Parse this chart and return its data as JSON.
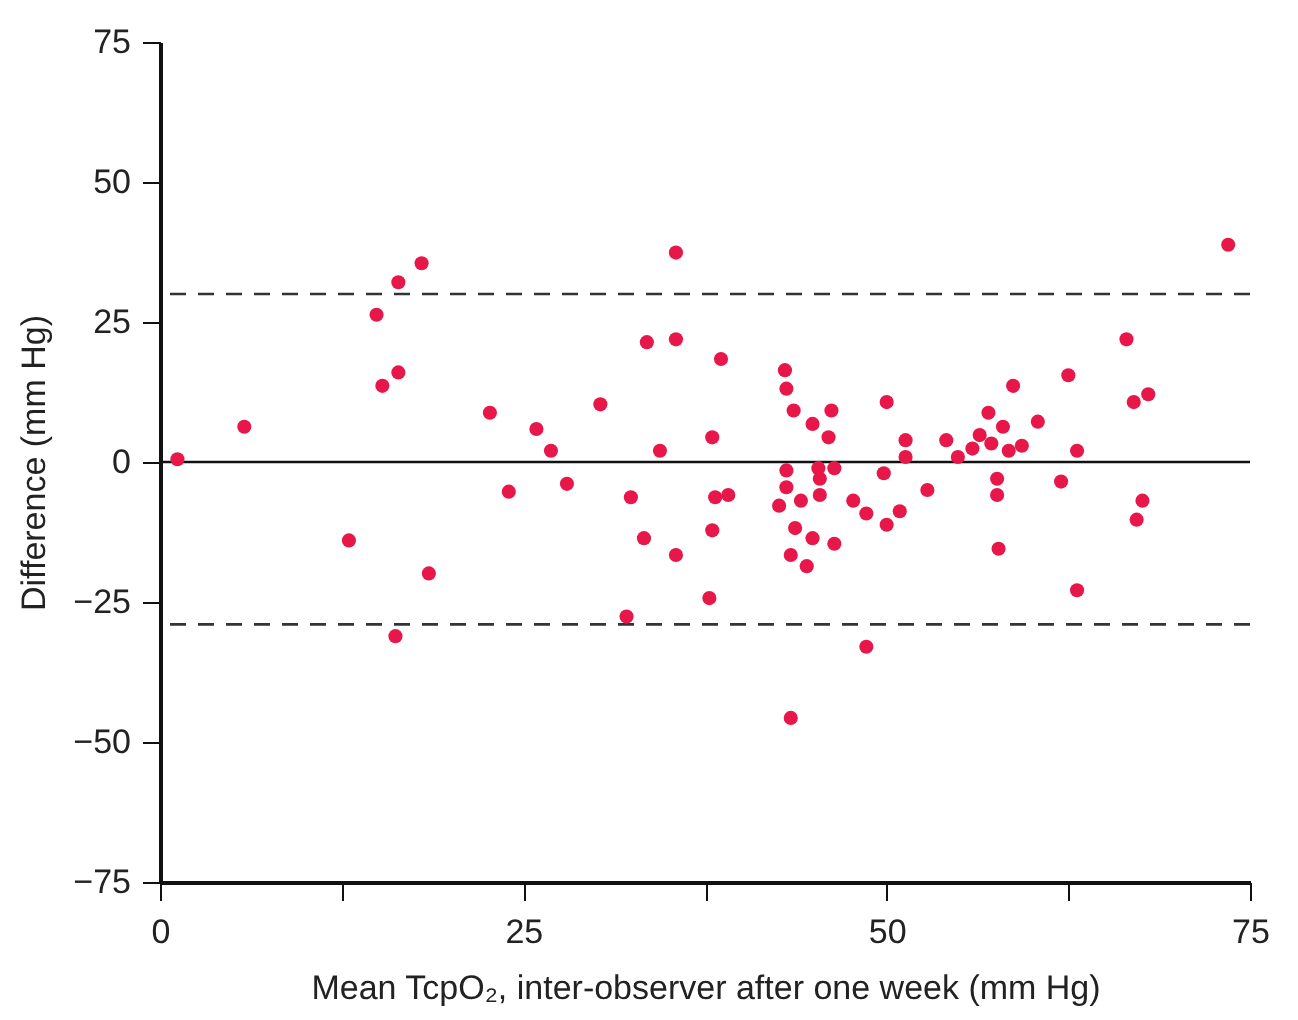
{
  "chart_data": {
    "type": "scatter",
    "xlabel": "Mean TcpO₂, inter-observer after one week (mm Hg)",
    "ylabel": "Difference (mm Hg)",
    "xlim": [
      0,
      75
    ],
    "ylim": [
      -75,
      75
    ],
    "xticks": [
      0,
      {
        "value": 12.5,
        "label": null
      },
      25,
      {
        "value": 37.5,
        "label": null
      },
      50,
      {
        "value": 62.5,
        "label": null
      },
      75
    ],
    "yticks": [
      {
        "value": -75,
        "label": "−75"
      },
      {
        "value": -50,
        "label": "−50"
      },
      {
        "value": -25,
        "label": "−25"
      },
      0,
      25,
      50,
      75
    ],
    "grid": false,
    "marker": "circle",
    "ref_lines": [
      {
        "axis": "y",
        "value": 30,
        "color": "#333333",
        "line_style": "dashed"
      },
      {
        "axis": "y",
        "value": -29,
        "color": "#333333",
        "line_style": "dashed"
      },
      {
        "axis": "y",
        "value": 0,
        "color": "#111111",
        "line_style": "solid"
      }
    ],
    "series": [
      {
        "color": "#e8174a",
        "x": [
          1.2,
          5.8,
          13.0,
          14.9,
          15.3,
          16.4,
          16.4,
          16.2,
          18.0,
          18.5,
          22.7,
          24.0,
          25.9,
          26.9,
          28.0,
          30.3,
          32.1,
          32.4,
          33.3,
          33.5,
          34.4,
          35.5,
          35.5,
          35.5,
          37.8,
          38.0,
          38.0,
          38.2,
          38.6,
          39.1,
          42.6,
          43.0,
          43.1,
          43.1,
          43.1,
          43.4,
          43.4,
          43.6,
          43.7,
          44.1,
          44.5,
          44.9,
          44.9,
          45.3,
          45.4,
          45.4,
          46.0,
          46.2,
          46.4,
          46.4,
          47.7,
          48.6,
          48.6,
          49.8,
          50.0,
          50.0,
          50.9,
          51.3,
          51.3,
          52.8,
          54.1,
          54.9,
          55.9,
          56.4,
          57.0,
          57.2,
          57.6,
          57.6,
          57.7,
          58.0,
          58.4,
          58.7,
          59.3,
          60.4,
          62.0,
          62.5,
          63.1,
          63.1,
          66.5,
          67.0,
          67.2,
          67.6,
          68.0,
          73.5
        ],
        "values": [
          0.5,
          6.3,
          -14.0,
          26.3,
          13.6,
          32.1,
          16.0,
          -31.1,
          35.5,
          -19.9,
          8.8,
          -5.3,
          5.9,
          2.0,
          -3.9,
          10.3,
          -27.6,
          -6.3,
          -13.6,
          21.4,
          2.0,
          37.4,
          21.9,
          -16.6,
          -24.3,
          4.4,
          -12.2,
          -6.3,
          18.4,
          -5.9,
          -7.8,
          16.4,
          13.1,
          -1.5,
          -4.5,
          -16.6,
          -45.7,
          9.2,
          -11.8,
          -6.9,
          -18.6,
          6.8,
          -13.6,
          -1.1,
          -3.0,
          -5.9,
          4.4,
          9.2,
          -1.1,
          -14.6,
          -6.9,
          -33.0,
          -9.2,
          -2.0,
          10.7,
          -11.2,
          -8.8,
          3.9,
          0.9,
          -5.0,
          3.9,
          0.9,
          2.4,
          4.8,
          8.8,
          3.3,
          -3.0,
          -5.9,
          -15.5,
          6.3,
          2.0,
          13.6,
          2.9,
          7.2,
          -3.5,
          15.5,
          2.0,
          -22.9,
          21.9,
          10.7,
          -10.3,
          -6.9,
          12.1,
          38.8
        ]
      }
    ]
  }
}
